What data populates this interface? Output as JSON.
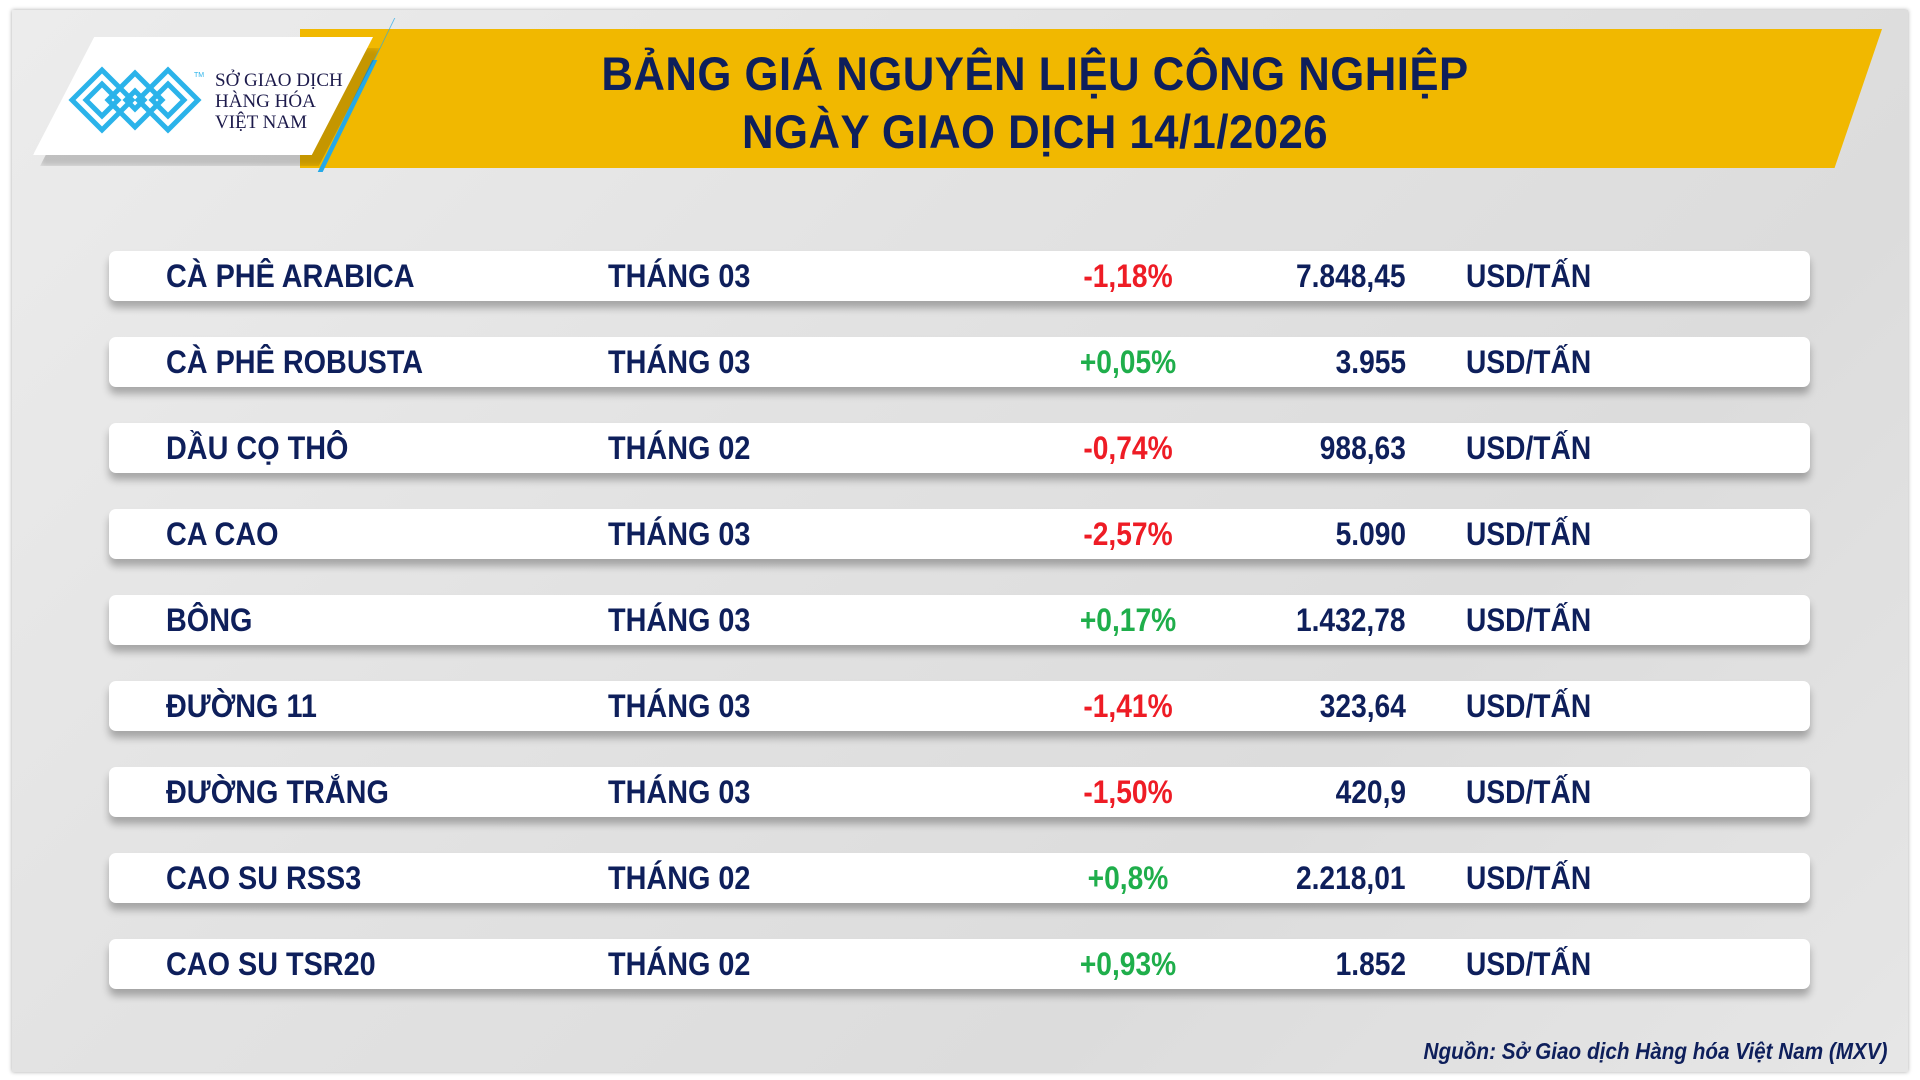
{
  "header": {
    "title_line1": "BẢNG GIÁ NGUYÊN LIỆU CÔNG NGHIỆP",
    "title_line2": "NGÀY GIAO DỊCH 14/1/2026",
    "logo": {
      "line1": "SỞ GIAO DỊCH",
      "line2": "HÀNG HÓA",
      "line3": "VIỆT NAM",
      "tm": "TM"
    }
  },
  "colors": {
    "accent": "#f1b800",
    "text": "#0e1f5b",
    "down": "#ee1c25",
    "up": "#1fae4b",
    "logo_blue": "#2bb3ea"
  },
  "rows": [
    {
      "name": "CÀ PHÊ ARABICA",
      "month": "THÁNG 03",
      "change": "-1,18%",
      "direction": "down",
      "price": "7.848,45",
      "unit": "USD/TẤN"
    },
    {
      "name": "CÀ PHÊ ROBUSTA",
      "month": "THÁNG 03",
      "change": "+0,05%",
      "direction": "up",
      "price": "3.955",
      "unit": "USD/TẤN"
    },
    {
      "name": "DẦU CỌ THÔ",
      "month": "THÁNG 02",
      "change": "-0,74%",
      "direction": "down",
      "price": "988,63",
      "unit": "USD/TẤN"
    },
    {
      "name": "CA CAO",
      "month": "THÁNG 03",
      "change": "-2,57%",
      "direction": "down",
      "price": "5.090",
      "unit": "USD/TẤN"
    },
    {
      "name": "BÔNG",
      "month": "THÁNG 03",
      "change": "+0,17%",
      "direction": "up",
      "price": "1.432,78",
      "unit": "USD/TẤN"
    },
    {
      "name": "ĐƯỜNG 11",
      "month": "THÁNG 03",
      "change": "-1,41%",
      "direction": "down",
      "price": "323,64",
      "unit": "USD/TẤN"
    },
    {
      "name": "ĐƯỜNG TRẮNG",
      "month": "THÁNG 03",
      "change": "-1,50%",
      "direction": "down",
      "price": "420,9",
      "unit": "USD/TẤN"
    },
    {
      "name": "CAO SU RSS3",
      "month": "THÁNG 02",
      "change": "+0,8%",
      "direction": "up",
      "price": "2.218,01",
      "unit": "USD/TẤN"
    },
    {
      "name": "CAO SU TSR20",
      "month": "THÁNG 02",
      "change": "+0,93%",
      "direction": "up",
      "price": "1.852",
      "unit": "USD/TẤN"
    }
  ],
  "footer": {
    "source": "Nguồn: Sở Giao dịch Hàng hóa Việt Nam (MXV)"
  }
}
